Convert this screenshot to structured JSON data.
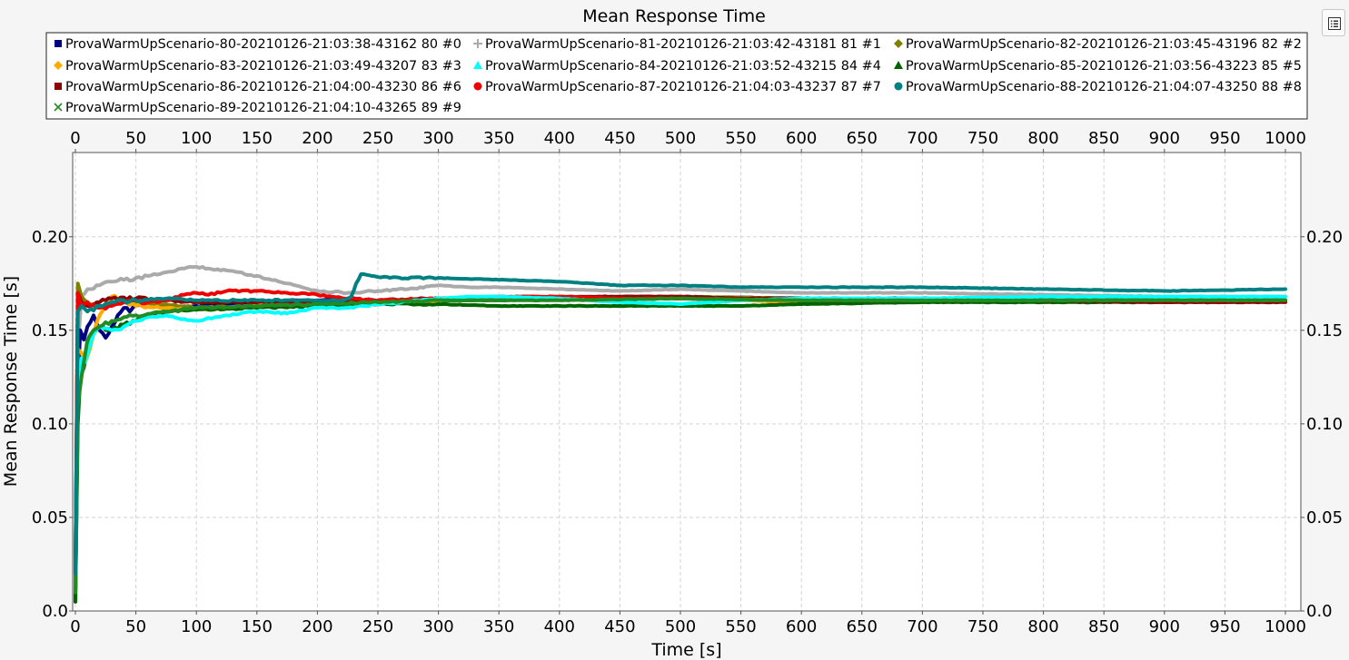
{
  "chart_data": {
    "type": "line",
    "title": "Mean Response Time",
    "xlabel": "Time [s]",
    "ylabel": "Mean Response Time [s]",
    "xlim": [
      0,
      1000
    ],
    "ylim": [
      0,
      0.245
    ],
    "x_ticks": [
      0,
      50,
      100,
      150,
      200,
      250,
      300,
      350,
      400,
      450,
      500,
      550,
      600,
      650,
      700,
      750,
      800,
      850,
      900,
      950,
      1000
    ],
    "y_ticks": [
      0.0,
      0.05,
      0.1,
      0.15,
      0.2
    ],
    "y_tick_labels": [
      "0.0",
      "0.05",
      "0.10",
      "0.15",
      "0.20"
    ],
    "grid": true,
    "legend_position": "top",
    "series": [
      {
        "name": "ProvaWarmUpScenario-80-20210126-21:03:38-43162 80 #0",
        "color": "#000080",
        "marker": "square",
        "points": [
          [
            0,
            0.005
          ],
          [
            2,
            0.12
          ],
          [
            4,
            0.15
          ],
          [
            7,
            0.145
          ],
          [
            10,
            0.152
          ],
          [
            15,
            0.158
          ],
          [
            20,
            0.15
          ],
          [
            25,
            0.146
          ],
          [
            30,
            0.152
          ],
          [
            35,
            0.158
          ],
          [
            40,
            0.162
          ],
          [
            45,
            0.16
          ],
          [
            50,
            0.164
          ],
          [
            60,
            0.165
          ],
          [
            80,
            0.162
          ],
          [
            100,
            0.163
          ],
          [
            150,
            0.165
          ],
          [
            200,
            0.166
          ],
          [
            300,
            0.166
          ],
          [
            400,
            0.167
          ],
          [
            500,
            0.168
          ],
          [
            600,
            0.167
          ],
          [
            700,
            0.167
          ],
          [
            800,
            0.167
          ],
          [
            900,
            0.166
          ],
          [
            1000,
            0.166
          ]
        ]
      },
      {
        "name": "ProvaWarmUpScenario-81-20210126-21:03:42-43181 81 #1",
        "color": "#aaaaaa",
        "marker": "plus",
        "points": [
          [
            0,
            0.01
          ],
          [
            2,
            0.14
          ],
          [
            5,
            0.168
          ],
          [
            10,
            0.172
          ],
          [
            20,
            0.174
          ],
          [
            30,
            0.176
          ],
          [
            40,
            0.177
          ],
          [
            50,
            0.178
          ],
          [
            60,
            0.179
          ],
          [
            75,
            0.181
          ],
          [
            90,
            0.183
          ],
          [
            100,
            0.184
          ],
          [
            110,
            0.183
          ],
          [
            125,
            0.182
          ],
          [
            150,
            0.179
          ],
          [
            175,
            0.175
          ],
          [
            200,
            0.171
          ],
          [
            225,
            0.17
          ],
          [
            250,
            0.171
          ],
          [
            275,
            0.172
          ],
          [
            300,
            0.174
          ],
          [
            325,
            0.173
          ],
          [
            350,
            0.173
          ],
          [
            400,
            0.172
          ],
          [
            450,
            0.171
          ],
          [
            500,
            0.172
          ],
          [
            550,
            0.171
          ],
          [
            600,
            0.17
          ],
          [
            700,
            0.17
          ],
          [
            800,
            0.169
          ],
          [
            900,
            0.168
          ],
          [
            1000,
            0.168
          ]
        ]
      },
      {
        "name": "ProvaWarmUpScenario-82-20210126-21:03:45-43196 82 #2",
        "color": "#808000",
        "marker": "diamond",
        "points": [
          [
            0,
            0.02
          ],
          [
            2,
            0.175
          ],
          [
            5,
            0.168
          ],
          [
            10,
            0.165
          ],
          [
            20,
            0.163
          ],
          [
            30,
            0.164
          ],
          [
            50,
            0.165
          ],
          [
            75,
            0.164
          ],
          [
            100,
            0.162
          ],
          [
            150,
            0.163
          ],
          [
            200,
            0.164
          ],
          [
            250,
            0.165
          ],
          [
            300,
            0.166
          ],
          [
            350,
            0.166
          ],
          [
            400,
            0.167
          ],
          [
            450,
            0.168
          ],
          [
            500,
            0.168
          ],
          [
            600,
            0.167
          ],
          [
            700,
            0.166
          ],
          [
            800,
            0.166
          ],
          [
            900,
            0.166
          ],
          [
            1000,
            0.166
          ]
        ]
      },
      {
        "name": "ProvaWarmUpScenario-83-20210126-21:03:49-43207 83 #3",
        "color": "#ffaa00",
        "marker": "diamond",
        "points": [
          [
            0,
            0.015
          ],
          [
            2,
            0.14
          ],
          [
            5,
            0.138
          ],
          [
            8,
            0.133
          ],
          [
            12,
            0.14
          ],
          [
            18,
            0.155
          ],
          [
            25,
            0.162
          ],
          [
            30,
            0.168
          ],
          [
            40,
            0.166
          ],
          [
            50,
            0.163
          ],
          [
            75,
            0.162
          ],
          [
            100,
            0.161
          ],
          [
            125,
            0.162
          ],
          [
            150,
            0.163
          ],
          [
            200,
            0.164
          ],
          [
            250,
            0.165
          ],
          [
            300,
            0.166
          ],
          [
            400,
            0.167
          ],
          [
            500,
            0.167
          ],
          [
            550,
            0.166
          ],
          [
            600,
            0.165
          ],
          [
            650,
            0.165
          ],
          [
            700,
            0.165
          ],
          [
            800,
            0.166
          ],
          [
            900,
            0.166
          ],
          [
            1000,
            0.166
          ]
        ]
      },
      {
        "name": "ProvaWarmUpScenario-84-20210126-21:03:52-43215 84 #4",
        "color": "#00ffff",
        "marker": "triangle",
        "points": [
          [
            0,
            0.01
          ],
          [
            2,
            0.12
          ],
          [
            5,
            0.135
          ],
          [
            8,
            0.133
          ],
          [
            12,
            0.142
          ],
          [
            15,
            0.148
          ],
          [
            20,
            0.152
          ],
          [
            30,
            0.15
          ],
          [
            40,
            0.152
          ],
          [
            50,
            0.155
          ],
          [
            60,
            0.157
          ],
          [
            75,
            0.158
          ],
          [
            90,
            0.156
          ],
          [
            100,
            0.155
          ],
          [
            125,
            0.158
          ],
          [
            150,
            0.16
          ],
          [
            175,
            0.159
          ],
          [
            200,
            0.162
          ],
          [
            225,
            0.162
          ],
          [
            250,
            0.164
          ],
          [
            300,
            0.167
          ],
          [
            325,
            0.168
          ],
          [
            350,
            0.168
          ],
          [
            400,
            0.167
          ],
          [
            450,
            0.165
          ],
          [
            500,
            0.164
          ],
          [
            550,
            0.166
          ],
          [
            600,
            0.167
          ],
          [
            700,
            0.167
          ],
          [
            800,
            0.168
          ],
          [
            900,
            0.168
          ],
          [
            1000,
            0.168
          ]
        ]
      },
      {
        "name": "ProvaWarmUpScenario-85-20210126-21:03:56-43223 85 #5",
        "color": "#006400",
        "marker": "triangle",
        "points": [
          [
            0,
            0.005
          ],
          [
            2,
            0.1
          ],
          [
            4,
            0.125
          ],
          [
            7,
            0.13
          ],
          [
            10,
            0.14
          ],
          [
            15,
            0.15
          ],
          [
            20,
            0.152
          ],
          [
            30,
            0.15
          ],
          [
            40,
            0.153
          ],
          [
            50,
            0.155
          ],
          [
            60,
            0.158
          ],
          [
            75,
            0.16
          ],
          [
            100,
            0.161
          ],
          [
            150,
            0.162
          ],
          [
            200,
            0.163
          ],
          [
            250,
            0.164
          ],
          [
            300,
            0.164
          ],
          [
            350,
            0.163
          ],
          [
            400,
            0.163
          ],
          [
            450,
            0.163
          ],
          [
            500,
            0.163
          ],
          [
            550,
            0.163
          ],
          [
            600,
            0.164
          ],
          [
            700,
            0.165
          ],
          [
            800,
            0.165
          ],
          [
            900,
            0.165
          ],
          [
            1000,
            0.166
          ]
        ]
      },
      {
        "name": "ProvaWarmUpScenario-86-20210126-21:04:00-43230 86 #6",
        "color": "#8b0000",
        "marker": "square",
        "points": [
          [
            0,
            0.02
          ],
          [
            2,
            0.17
          ],
          [
            5,
            0.165
          ],
          [
            10,
            0.163
          ],
          [
            20,
            0.165
          ],
          [
            30,
            0.167
          ],
          [
            50,
            0.167
          ],
          [
            75,
            0.166
          ],
          [
            100,
            0.165
          ],
          [
            150,
            0.165
          ],
          [
            200,
            0.165
          ],
          [
            250,
            0.166
          ],
          [
            300,
            0.167
          ],
          [
            350,
            0.167
          ],
          [
            400,
            0.168
          ],
          [
            450,
            0.168
          ],
          [
            500,
            0.168
          ],
          [
            550,
            0.167
          ],
          [
            600,
            0.167
          ],
          [
            700,
            0.166
          ],
          [
            800,
            0.166
          ],
          [
            900,
            0.165
          ],
          [
            1000,
            0.165
          ]
        ]
      },
      {
        "name": "ProvaWarmUpScenario-87-20210126-21:04:03-43237 87 #7",
        "color": "#ee0000",
        "marker": "circle",
        "points": [
          [
            0,
            0.02
          ],
          [
            2,
            0.17
          ],
          [
            5,
            0.163
          ],
          [
            10,
            0.165
          ],
          [
            20,
            0.162
          ],
          [
            30,
            0.163
          ],
          [
            40,
            0.165
          ],
          [
            50,
            0.166
          ],
          [
            60,
            0.165
          ],
          [
            75,
            0.166
          ],
          [
            90,
            0.169
          ],
          [
            100,
            0.17
          ],
          [
            110,
            0.169
          ],
          [
            125,
            0.171
          ],
          [
            150,
            0.171
          ],
          [
            175,
            0.17
          ],
          [
            200,
            0.169
          ],
          [
            225,
            0.167
          ],
          [
            250,
            0.166
          ],
          [
            300,
            0.167
          ],
          [
            350,
            0.168
          ],
          [
            400,
            0.168
          ],
          [
            450,
            0.167
          ],
          [
            500,
            0.167
          ],
          [
            600,
            0.166
          ],
          [
            700,
            0.166
          ],
          [
            800,
            0.166
          ],
          [
            900,
            0.166
          ],
          [
            1000,
            0.166
          ]
        ]
      },
      {
        "name": "ProvaWarmUpScenario-88-20210126-21:04:07-43250 88 #8",
        "color": "#008080",
        "marker": "circle",
        "points": [
          [
            0,
            0.02
          ],
          [
            2,
            0.16
          ],
          [
            5,
            0.163
          ],
          [
            10,
            0.16
          ],
          [
            20,
            0.163
          ],
          [
            30,
            0.165
          ],
          [
            50,
            0.166
          ],
          [
            75,
            0.167
          ],
          [
            100,
            0.166
          ],
          [
            150,
            0.166
          ],
          [
            200,
            0.166
          ],
          [
            220,
            0.166
          ],
          [
            228,
            0.168
          ],
          [
            232,
            0.175
          ],
          [
            236,
            0.18
          ],
          [
            245,
            0.179
          ],
          [
            260,
            0.178
          ],
          [
            300,
            0.178
          ],
          [
            350,
            0.177
          ],
          [
            400,
            0.176
          ],
          [
            450,
            0.174
          ],
          [
            500,
            0.174
          ],
          [
            550,
            0.173
          ],
          [
            600,
            0.173
          ],
          [
            700,
            0.173
          ],
          [
            800,
            0.172
          ],
          [
            900,
            0.171
          ],
          [
            1000,
            0.172
          ]
        ]
      },
      {
        "name": "ProvaWarmUpScenario-89-20210126-21:04:10-43265 89 #9",
        "color": "#228b22",
        "marker": "cross",
        "points": [
          [
            0,
            0.01
          ],
          [
            2,
            0.11
          ],
          [
            5,
            0.125
          ],
          [
            10,
            0.145
          ],
          [
            15,
            0.15
          ],
          [
            20,
            0.152
          ],
          [
            30,
            0.155
          ],
          [
            40,
            0.157
          ],
          [
            50,
            0.158
          ],
          [
            75,
            0.16
          ],
          [
            100,
            0.162
          ],
          [
            150,
            0.163
          ],
          [
            200,
            0.164
          ],
          [
            250,
            0.165
          ],
          [
            300,
            0.166
          ],
          [
            400,
            0.166
          ],
          [
            500,
            0.167
          ],
          [
            600,
            0.166
          ],
          [
            700,
            0.166
          ],
          [
            800,
            0.166
          ],
          [
            900,
            0.166
          ],
          [
            1000,
            0.166
          ]
        ]
      }
    ]
  }
}
